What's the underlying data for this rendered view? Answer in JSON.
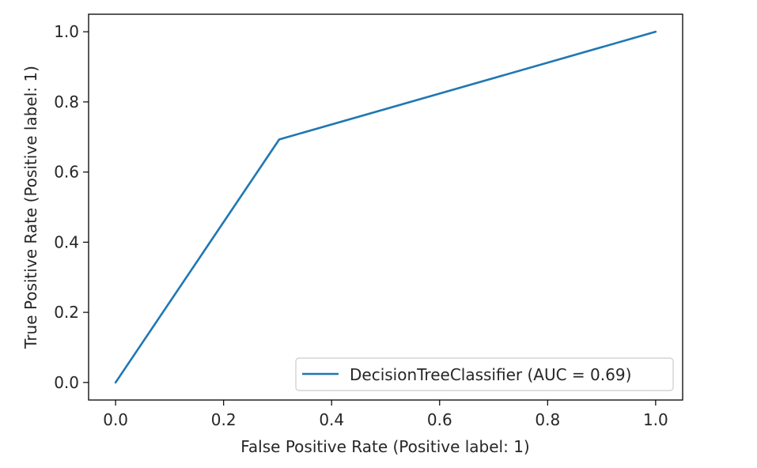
{
  "chart_data": {
    "type": "line",
    "title": "",
    "xlabel": "False Positive Rate (Positive label: 1)",
    "ylabel": "True Positive Rate (Positive label: 1)",
    "xlim": [
      -0.05,
      1.05
    ],
    "ylim": [
      -0.05,
      1.05
    ],
    "xticks": [
      "0.0",
      "0.2",
      "0.4",
      "0.6",
      "0.8",
      "1.0"
    ],
    "yticks": [
      "0.0",
      "0.2",
      "0.4",
      "0.6",
      "0.8",
      "1.0"
    ],
    "grid": false,
    "legend_position": "lower-right",
    "series": [
      {
        "name": "DecisionTreeClassifier (AUC = 0.69)",
        "color": "#1f77b4",
        "x": [
          0.0,
          0.303,
          1.0
        ],
        "y": [
          0.0,
          0.693,
          1.0
        ]
      }
    ]
  }
}
